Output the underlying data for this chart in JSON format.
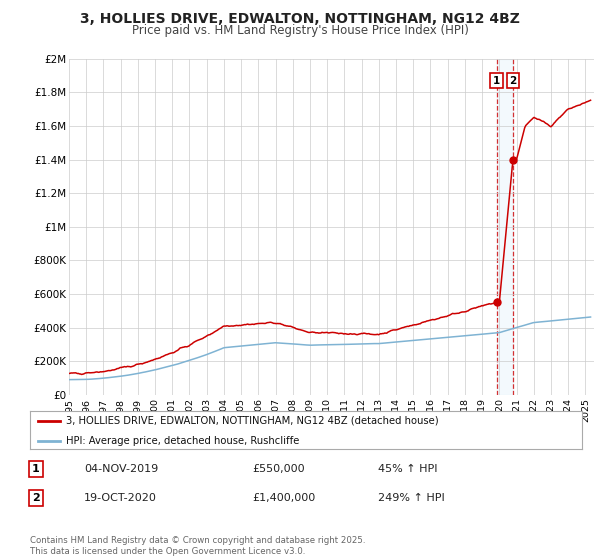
{
  "title": "3, HOLLIES DRIVE, EDWALTON, NOTTINGHAM, NG12 4BZ",
  "subtitle": "Price paid vs. HM Land Registry's House Price Index (HPI)",
  "title_fontsize": 10,
  "subtitle_fontsize": 8.5,
  "background_color": "#ffffff",
  "plot_bg_color": "#ffffff",
  "grid_color": "#cccccc",
  "hpi_line_color": "#7fb3d3",
  "price_line_color": "#cc0000",
  "ylim": [
    0,
    2000000
  ],
  "yticks": [
    0,
    200000,
    400000,
    600000,
    800000,
    1000000,
    1200000,
    1400000,
    1600000,
    1800000,
    2000000
  ],
  "ytick_labels": [
    "£0",
    "£200K",
    "£400K",
    "£600K",
    "£800K",
    "£1M",
    "£1.2M",
    "£1.4M",
    "£1.6M",
    "£1.8M",
    "£2M"
  ],
  "xlim_start": 1995.0,
  "xlim_end": 2025.5,
  "xticks": [
    1995,
    1996,
    1997,
    1998,
    1999,
    2000,
    2001,
    2002,
    2003,
    2004,
    2005,
    2006,
    2007,
    2008,
    2009,
    2010,
    2011,
    2012,
    2013,
    2014,
    2015,
    2016,
    2017,
    2018,
    2019,
    2020,
    2021,
    2022,
    2023,
    2024,
    2025
  ],
  "legend_label_price": "3, HOLLIES DRIVE, EDWALTON, NOTTINGHAM, NG12 4BZ (detached house)",
  "legend_label_hpi": "HPI: Average price, detached house, Rushcliffe",
  "marker1_x": 2019.84,
  "marker1_y": 550000,
  "marker2_x": 2020.79,
  "marker2_y": 1400000,
  "footer_text": "Contains HM Land Registry data © Crown copyright and database right 2025.\nThis data is licensed under the Open Government Licence v3.0.",
  "vline1_x": 2019.84,
  "vline2_x": 2020.79,
  "shade_color": "#d0e8f8",
  "marker1_date": "04-NOV-2019",
  "marker1_price": "£550,000",
  "marker1_pct": "45% ↑ HPI",
  "marker2_date": "19-OCT-2020",
  "marker2_price": "£1,400,000",
  "marker2_pct": "249% ↑ HPI"
}
